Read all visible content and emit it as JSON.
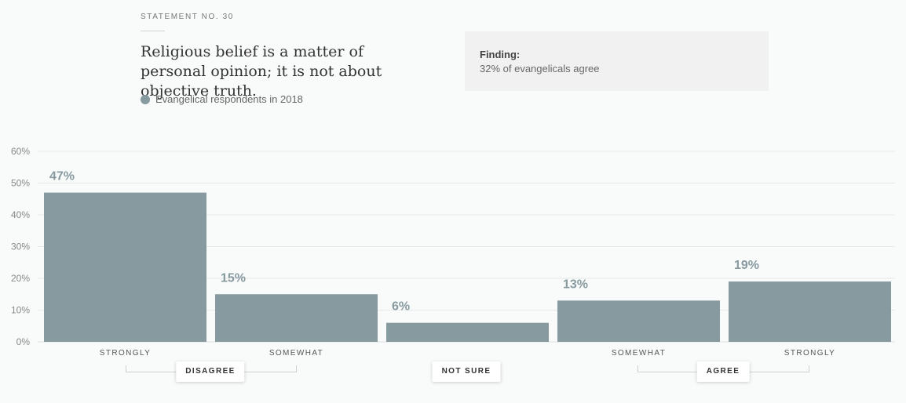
{
  "header": {
    "eyebrow": "STATEMENT NO. 30",
    "statement": "Religious belief is a matter of personal opinion; it is not about objective truth.",
    "legend_label": "Evangelical respondents in 2018",
    "series_color": "#879aa0"
  },
  "finding": {
    "label": "Finding:",
    "text": "32% of evangelicals agree"
  },
  "groups": {
    "disagree": "DISAGREE",
    "not_sure": "NOT SURE",
    "agree": "AGREE"
  },
  "chart_data": {
    "type": "bar",
    "categories": [
      "STRONGLY",
      "SOMEWHAT",
      "",
      "SOMEWHAT",
      "STRONGLY"
    ],
    "values": [
      47,
      15,
      6,
      13,
      19
    ],
    "value_labels": [
      "47%",
      "15%",
      "6%",
      "13%",
      "19%"
    ],
    "series": [
      {
        "name": "Evangelical respondents in 2018",
        "values": [
          47,
          15,
          6,
          13,
          19
        ]
      }
    ],
    "ylim": [
      0,
      60
    ],
    "yticks": [
      0,
      10,
      20,
      30,
      40,
      50,
      60
    ],
    "ytick_labels": [
      "0%",
      "10%",
      "20%",
      "30%",
      "40%",
      "50%",
      "60%"
    ],
    "grid": true,
    "title": "",
    "xlabel": "",
    "ylabel": ""
  }
}
